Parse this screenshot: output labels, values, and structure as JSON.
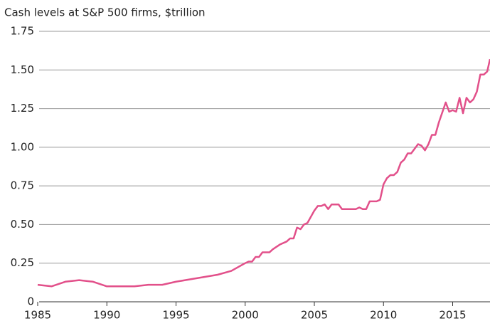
{
  "chart_data": {
    "type": "line",
    "title": "Cash levels at S&P 500 firms, $trillion",
    "x": [
      1985,
      1986,
      1987,
      1988,
      1989,
      1990,
      1991,
      1992,
      1993,
      1994,
      1995,
      1996,
      1997,
      1998,
      1999,
      2000,
      2000.25,
      2000.5,
      2000.75,
      2001,
      2001.25,
      2001.75,
      2002,
      2002.5,
      2003,
      2003.25,
      2003.5,
      2003.75,
      2004,
      2004.25,
      2004.5,
      2004.75,
      2005,
      2005.25,
      2005.5,
      2005.75,
      2006,
      2006.25,
      2006.75,
      2007,
      2007.5,
      2008,
      2008.25,
      2008.5,
      2008.75,
      2009,
      2009.5,
      2009.75,
      2010,
      2010.25,
      2010.5,
      2010.75,
      2011,
      2011.25,
      2011.5,
      2011.75,
      2012,
      2012.25,
      2012.5,
      2012.75,
      2013,
      2013.25,
      2013.5,
      2013.75,
      2014,
      2014.5,
      2014.75,
      2015,
      2015.25,
      2015.5,
      2015.75,
      2016,
      2016.25,
      2016.5,
      2016.75,
      2017,
      2017.25,
      2017.5,
      2017.7
    ],
    "series": [
      {
        "name": "Cash levels",
        "color": "#e2508a",
        "values": [
          0.11,
          0.1,
          0.13,
          0.14,
          0.13,
          0.1,
          0.1,
          0.1,
          0.11,
          0.11,
          0.13,
          0.145,
          0.16,
          0.175,
          0.2,
          0.25,
          0.26,
          0.26,
          0.29,
          0.29,
          0.32,
          0.32,
          0.34,
          0.37,
          0.39,
          0.41,
          0.41,
          0.48,
          0.47,
          0.5,
          0.51,
          0.55,
          0.59,
          0.62,
          0.62,
          0.63,
          0.6,
          0.63,
          0.63,
          0.6,
          0.6,
          0.6,
          0.61,
          0.6,
          0.6,
          0.65,
          0.65,
          0.66,
          0.76,
          0.8,
          0.82,
          0.82,
          0.84,
          0.9,
          0.92,
          0.96,
          0.96,
          0.99,
          1.02,
          1.01,
          0.98,
          1.02,
          1.08,
          1.08,
          1.16,
          1.29,
          1.23,
          1.24,
          1.23,
          1.32,
          1.22,
          1.32,
          1.29,
          1.31,
          1.36,
          1.47,
          1.47,
          1.49,
          1.57
        ]
      }
    ],
    "xlim": [
      1985,
      2017.7
    ],
    "xticks": [
      1985,
      1990,
      1995,
      2000,
      2005,
      2010,
      2015
    ],
    "ylim": [
      0,
      1.75
    ],
    "yticks": [
      0,
      {
        "value": 0.25,
        "label": "0.25"
      },
      {
        "value": 0.5,
        "label": "0.50"
      },
      {
        "value": 0.75,
        "label": "0.75"
      },
      {
        "value": 1,
        "label": "1.00"
      },
      {
        "value": 1.25,
        "label": "1.25"
      },
      {
        "value": 1.5,
        "label": "1.50"
      },
      {
        "value": 1.75,
        "label": "1.75"
      }
    ],
    "grid": true
  }
}
